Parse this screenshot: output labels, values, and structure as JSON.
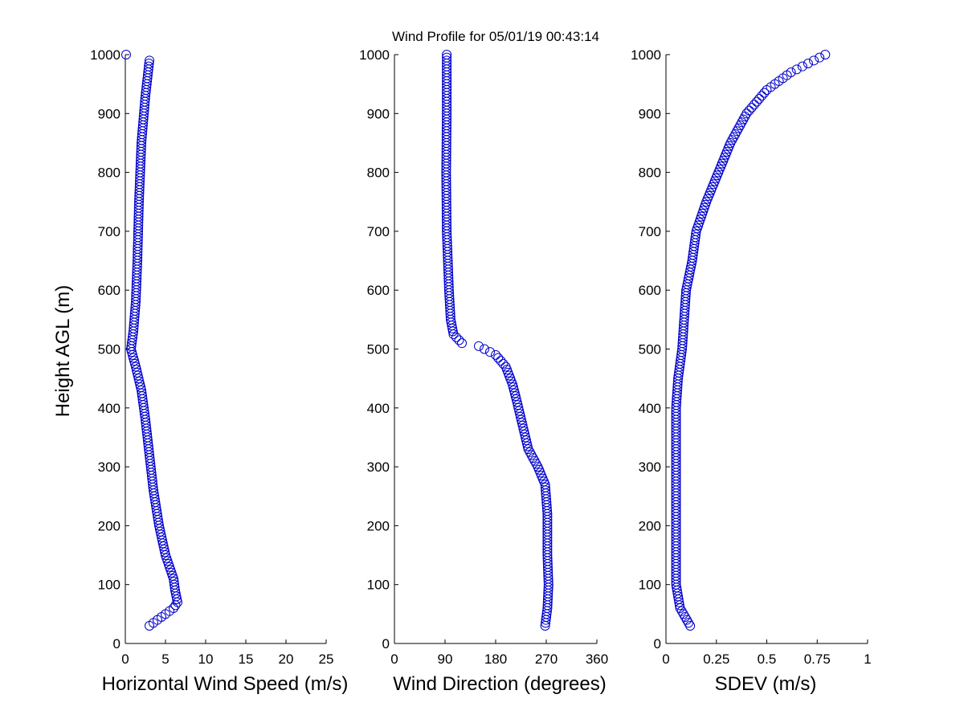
{
  "figure": {
    "title": "Wind Profile for  05/01/19 00:43:14",
    "marker_color": "#0000cc"
  },
  "chart_data": [
    {
      "type": "scatter",
      "xlabel": "Horizontal Wind Speed (m/s)",
      "ylabel": "Height AGL (m)",
      "xlim": [
        0,
        25
      ],
      "ylim": [
        0,
        1000
      ],
      "xticks": [
        "0",
        "5",
        "10",
        "15",
        "20",
        "25"
      ],
      "yticks": [
        "0",
        "100",
        "200",
        "300",
        "400",
        "500",
        "600",
        "700",
        "800",
        "900",
        "1000"
      ],
      "anchors": [
        [
          3.0,
          30
        ],
        [
          4.0,
          40
        ],
        [
          5.0,
          50
        ],
        [
          6.0,
          60
        ],
        [
          6.5,
          70
        ],
        [
          6.2,
          90
        ],
        [
          6.0,
          110
        ],
        [
          5.0,
          150
        ],
        [
          4.2,
          200
        ],
        [
          3.5,
          260
        ],
        [
          3.0,
          320
        ],
        [
          2.5,
          380
        ],
        [
          2.0,
          430
        ],
        [
          1.3,
          470
        ],
        [
          0.7,
          500
        ],
        [
          1.0,
          530
        ],
        [
          1.3,
          580
        ],
        [
          1.5,
          650
        ],
        [
          1.7,
          750
        ],
        [
          2.0,
          850
        ],
        [
          2.5,
          930
        ],
        [
          3.0,
          990
        ],
        [
          0.1,
          1000
        ]
      ]
    },
    {
      "type": "scatter",
      "xlabel": "Wind Direction (degrees)",
      "ylabel": "",
      "xlim": [
        0,
        360
      ],
      "ylim": [
        0,
        1000
      ],
      "xticks": [
        "0",
        "90",
        "180",
        "270",
        "360"
      ],
      "yticks": [
        "0",
        "100",
        "200",
        "300",
        "400",
        "500",
        "600",
        "700",
        "800",
        "900",
        "1000"
      ],
      "anchors": [
        [
          268,
          30
        ],
        [
          272,
          60
        ],
        [
          274,
          100
        ],
        [
          272,
          150
        ],
        [
          272,
          220
        ],
        [
          268,
          270
        ],
        [
          255,
          300
        ],
        [
          238,
          330
        ],
        [
          228,
          370
        ],
        [
          218,
          410
        ],
        [
          210,
          440
        ],
        [
          198,
          470
        ],
        [
          180,
          490
        ],
        [
          150,
          505
        ],
        [
          120,
          510
        ],
        [
          105,
          525
        ],
        [
          100,
          550
        ],
        [
          97,
          600
        ],
        [
          95,
          650
        ],
        [
          93,
          700
        ],
        [
          92,
          800
        ],
        [
          93,
          900
        ],
        [
          93,
          1000
        ]
      ]
    },
    {
      "type": "scatter",
      "xlabel": "SDEV  (m/s)",
      "ylabel": "",
      "xlim": [
        0,
        1
      ],
      "ylim": [
        0,
        1000
      ],
      "xticks": [
        "0",
        "0.25",
        "0.5",
        "0.75",
        "1"
      ],
      "yticks": [
        "0",
        "100",
        "200",
        "300",
        "400",
        "500",
        "600",
        "700",
        "800",
        "900",
        "1000"
      ],
      "anchors": [
        [
          0.12,
          30
        ],
        [
          0.07,
          60
        ],
        [
          0.05,
          100
        ],
        [
          0.05,
          200
        ],
        [
          0.05,
          300
        ],
        [
          0.05,
          400
        ],
        [
          0.06,
          450
        ],
        [
          0.08,
          500
        ],
        [
          0.09,
          550
        ],
        [
          0.1,
          600
        ],
        [
          0.13,
          650
        ],
        [
          0.15,
          700
        ],
        [
          0.2,
          750
        ],
        [
          0.26,
          800
        ],
        [
          0.32,
          850
        ],
        [
          0.4,
          900
        ],
        [
          0.5,
          940
        ],
        [
          0.62,
          970
        ],
        [
          0.79,
          1000
        ]
      ]
    }
  ]
}
